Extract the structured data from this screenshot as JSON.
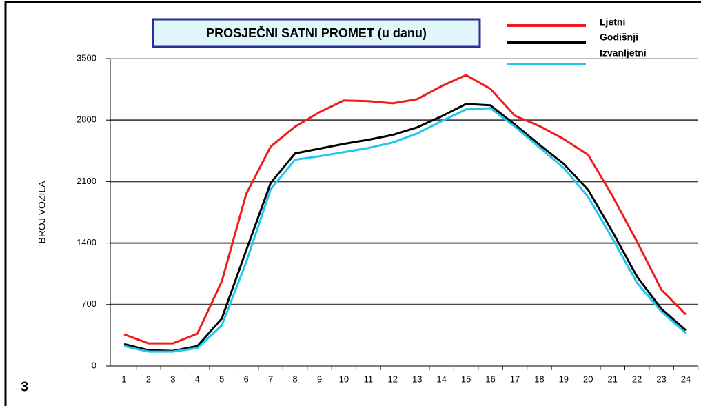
{
  "chart_data": {
    "type": "line",
    "title": "PROSJEČNI SATNI PROMET (u danu)",
    "y_label": "BROJ VOZILA",
    "panel_label": "3",
    "categories": [
      "1",
      "2",
      "3",
      "4",
      "5",
      "6",
      "7",
      "8",
      "9",
      "10",
      "11",
      "12",
      "13",
      "14",
      "15",
      "16",
      "17",
      "18",
      "19",
      "20",
      "21",
      "22",
      "23",
      "24"
    ],
    "series": [
      {
        "name": "Ljetni",
        "color": "#ee1c1c",
        "values": [
          360,
          258,
          258,
          368,
          963,
          1958,
          2498,
          2725,
          2890,
          3023,
          3015,
          2991,
          3038,
          3187,
          3312,
          3156,
          2850,
          2733,
          2584,
          2404,
          1934,
          1417,
          869,
          587
        ]
      },
      {
        "name": "Godišnji",
        "color": "#000000",
        "values": [
          250,
          180,
          172,
          227,
          540,
          1316,
          2083,
          2420,
          2475,
          2529,
          2576,
          2631,
          2717,
          2843,
          2983,
          2968,
          2749,
          2521,
          2302,
          2005,
          1527,
          1018,
          650,
          407
        ]
      },
      {
        "name": "Izvanljetni",
        "color": "#1ec8f0",
        "values": [
          227,
          164,
          164,
          204,
          462,
          1182,
          2012,
          2349,
          2388,
          2435,
          2482,
          2545,
          2647,
          2788,
          2921,
          2936,
          2725,
          2490,
          2255,
          1926,
          1449,
          948,
          619,
          376
        ]
      }
    ],
    "ylim": [
      0,
      3500
    ],
    "yticks": [
      0,
      700,
      1400,
      2100,
      2800,
      3500
    ],
    "grid": true
  }
}
